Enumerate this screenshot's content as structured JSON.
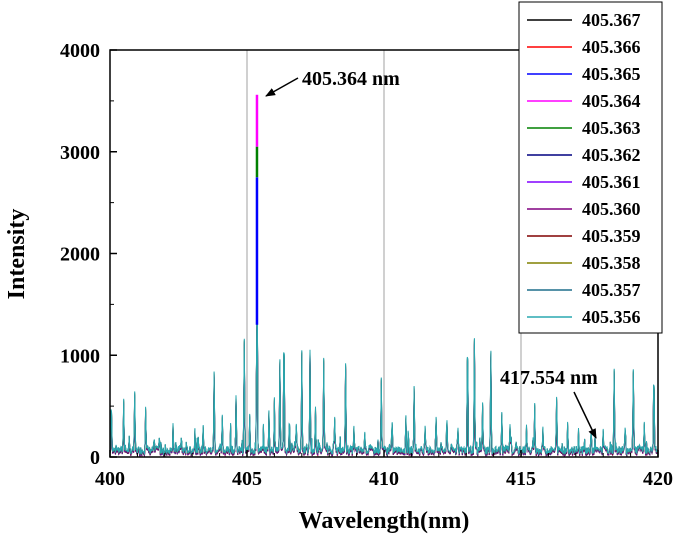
{
  "chart_data": {
    "type": "line",
    "xlabel": "Wavelength(nm)",
    "ylabel": "Intensity",
    "xlim": [
      400,
      420
    ],
    "ylim": [
      0,
      4000
    ],
    "xticks": [
      400,
      405,
      410,
      415,
      420
    ],
    "yticks": [
      0,
      1000,
      2000,
      3000,
      4000
    ],
    "x_tick_labels": [
      "400",
      "405",
      "410",
      "415",
      "420"
    ],
    "y_tick_labels": [
      "0",
      "1000",
      "2000",
      "3000",
      "4000"
    ],
    "grid": "vertical",
    "legend_position": "top-right",
    "series": [
      {
        "name": "405.367",
        "color": "#000000"
      },
      {
        "name": "405.366",
        "color": "#ff0000"
      },
      {
        "name": "405.365",
        "color": "#0000ff"
      },
      {
        "name": "405.364",
        "color": "#ff00ff"
      },
      {
        "name": "405.363",
        "color": "#008000"
      },
      {
        "name": "405.362",
        "color": "#000080"
      },
      {
        "name": "405.361",
        "color": "#8000ff"
      },
      {
        "name": "405.360",
        "color": "#800080"
      },
      {
        "name": "405.359",
        "color": "#800000"
      },
      {
        "name": "405.358",
        "color": "#808000"
      },
      {
        "name": "405.357",
        "color": "#1f6f8b"
      },
      {
        "name": "405.356",
        "color": "#2aa8b0"
      }
    ],
    "peaks": [
      {
        "x": 400.05,
        "y": 500
      },
      {
        "x": 400.5,
        "y": 490
      },
      {
        "x": 400.9,
        "y": 500
      },
      {
        "x": 401.3,
        "y": 420
      },
      {
        "x": 401.8,
        "y": 120
      },
      {
        "x": 402.3,
        "y": 200
      },
      {
        "x": 402.6,
        "y": 150
      },
      {
        "x": 403.1,
        "y": 180
      },
      {
        "x": 403.4,
        "y": 230
      },
      {
        "x": 403.8,
        "y": 720
      },
      {
        "x": 404.1,
        "y": 280
      },
      {
        "x": 404.4,
        "y": 200
      },
      {
        "x": 404.6,
        "y": 450
      },
      {
        "x": 404.9,
        "y": 1080
      },
      {
        "x": 405.1,
        "y": 330
      },
      {
        "x": 405.364,
        "y": 3560
      },
      {
        "x": 405.6,
        "y": 150
      },
      {
        "x": 405.8,
        "y": 380
      },
      {
        "x": 406.0,
        "y": 500
      },
      {
        "x": 406.2,
        "y": 880
      },
      {
        "x": 406.35,
        "y": 1210
      },
      {
        "x": 406.55,
        "y": 300
      },
      {
        "x": 406.8,
        "y": 250
      },
      {
        "x": 407.0,
        "y": 930
      },
      {
        "x": 407.3,
        "y": 980
      },
      {
        "x": 407.5,
        "y": 380
      },
      {
        "x": 407.8,
        "y": 840
      },
      {
        "x": 408.2,
        "y": 230
      },
      {
        "x": 408.6,
        "y": 850
      },
      {
        "x": 408.9,
        "y": 200
      },
      {
        "x": 409.3,
        "y": 180
      },
      {
        "x": 409.9,
        "y": 580
      },
      {
        "x": 410.3,
        "y": 200
      },
      {
        "x": 410.8,
        "y": 300
      },
      {
        "x": 411.1,
        "y": 560
      },
      {
        "x": 411.5,
        "y": 200
      },
      {
        "x": 411.9,
        "y": 300
      },
      {
        "x": 412.3,
        "y": 250
      },
      {
        "x": 412.7,
        "y": 220
      },
      {
        "x": 413.05,
        "y": 1180
      },
      {
        "x": 413.3,
        "y": 1040
      },
      {
        "x": 413.6,
        "y": 450
      },
      {
        "x": 413.9,
        "y": 860
      },
      {
        "x": 414.3,
        "y": 320
      },
      {
        "x": 414.6,
        "y": 200
      },
      {
        "x": 415.2,
        "y": 230
      },
      {
        "x": 415.5,
        "y": 450
      },
      {
        "x": 415.8,
        "y": 200
      },
      {
        "x": 416.3,
        "y": 500
      },
      {
        "x": 416.7,
        "y": 200
      },
      {
        "x": 417.1,
        "y": 150
      },
      {
        "x": 417.554,
        "y": 140
      },
      {
        "x": 418.0,
        "y": 200
      },
      {
        "x": 418.4,
        "y": 720
      },
      {
        "x": 418.8,
        "y": 220
      },
      {
        "x": 419.1,
        "y": 780
      },
      {
        "x": 419.5,
        "y": 200
      },
      {
        "x": 419.85,
        "y": 800
      }
    ],
    "main_peak_segments": [
      {
        "from": 1300,
        "to": 2750,
        "color": "#0000ff"
      },
      {
        "from": 2750,
        "to": 3050,
        "color": "#008000"
      },
      {
        "from": 3050,
        "to": 3560,
        "color": "#ff00ff"
      }
    ],
    "annotations": [
      {
        "text": "405.364 nm",
        "x": 405.364,
        "y": 3560
      },
      {
        "text": "417.554 nm",
        "x": 417.554,
        "y": 140
      }
    ]
  }
}
